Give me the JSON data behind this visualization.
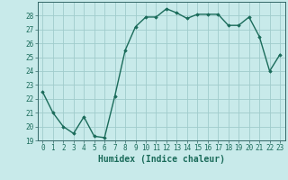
{
  "x": [
    0,
    1,
    2,
    3,
    4,
    5,
    6,
    7,
    8,
    9,
    10,
    11,
    12,
    13,
    14,
    15,
    16,
    17,
    18,
    19,
    20,
    21,
    22,
    23
  ],
  "y": [
    22.5,
    21.0,
    20.0,
    19.5,
    20.7,
    19.3,
    19.2,
    22.2,
    25.5,
    27.2,
    27.9,
    27.9,
    28.5,
    28.2,
    27.8,
    28.1,
    28.1,
    28.1,
    27.3,
    27.3,
    27.9,
    26.5,
    24.0,
    25.2
  ],
  "line_color": "#1a6b5a",
  "marker": "D",
  "markersize": 1.8,
  "linewidth": 1.0,
  "xlabel": "Humidex (Indice chaleur)",
  "ylim": [
    19,
    29
  ],
  "xlim": [
    -0.5,
    23.5
  ],
  "yticks": [
    19,
    20,
    21,
    22,
    23,
    24,
    25,
    26,
    27,
    28
  ],
  "xticks": [
    0,
    1,
    2,
    3,
    4,
    5,
    6,
    7,
    8,
    9,
    10,
    11,
    12,
    13,
    14,
    15,
    16,
    17,
    18,
    19,
    20,
    21,
    22,
    23
  ],
  "bg_color": "#c8eaea",
  "grid_color": "#a0cccc",
  "tick_fontsize": 5.5,
  "xlabel_fontsize": 7.0,
  "spine_color": "#336666"
}
